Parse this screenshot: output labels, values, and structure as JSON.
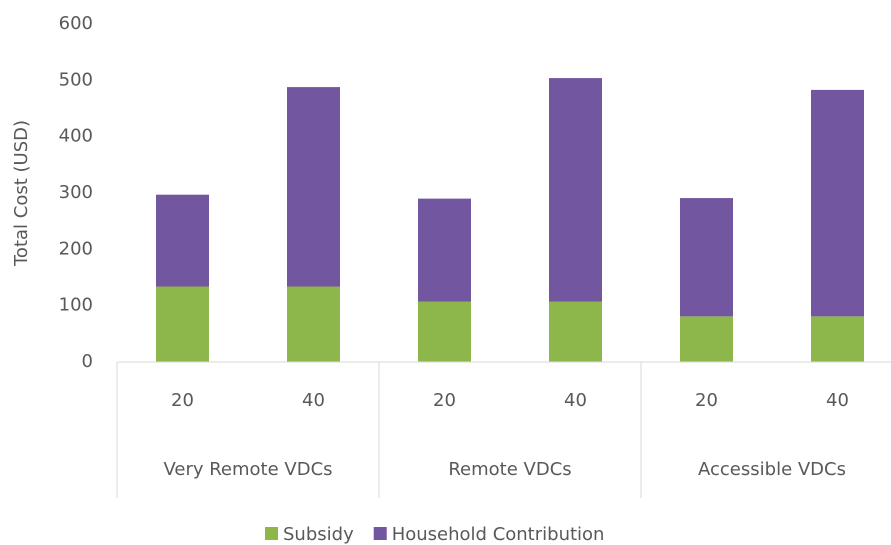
{
  "chart_data": {
    "type": "stacked_bar",
    "y_label": "Total Cost (USD)",
    "groups": [
      "Very Remote VDCs",
      "Remote VDCs",
      "Accessible VDCs"
    ],
    "categories": [
      "20",
      "40",
      "20",
      "40",
      "20",
      "40"
    ],
    "series": [
      {
        "name": "Subsidy",
        "color": "#8db64b",
        "values": [
          134,
          134,
          107,
          107,
          81,
          81
        ]
      },
      {
        "name": "Household Contribution",
        "color": "#7356a0",
        "values": [
          163,
          354,
          183,
          397,
          210,
          402
        ]
      }
    ],
    "ylim": [
      0,
      600
    ],
    "yticks": [
      0,
      100,
      200,
      300,
      400,
      500,
      600
    ],
    "grid": false,
    "legend": "bottom"
  }
}
